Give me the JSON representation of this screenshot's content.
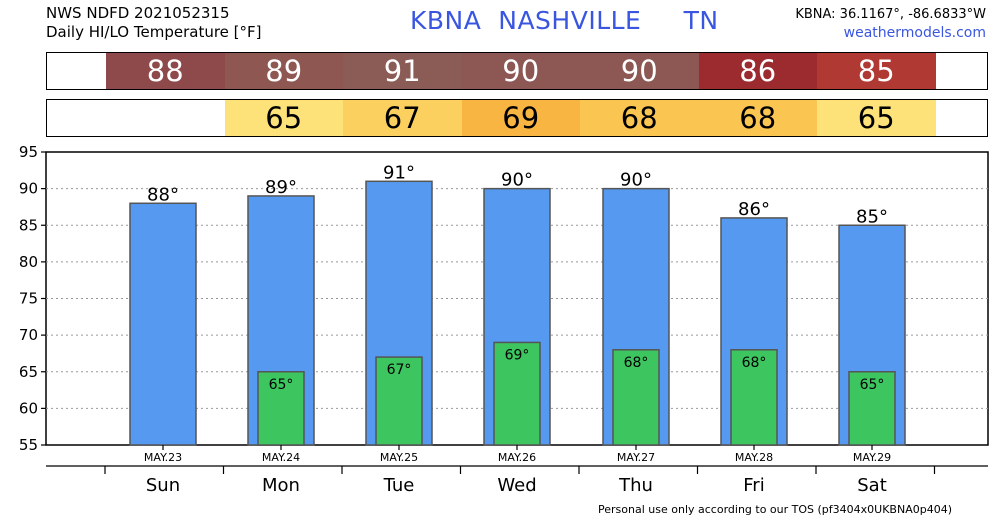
{
  "header": {
    "line1": "NWS NDFD 2021052315",
    "line2": "Daily HI/LO Temperature [°F]",
    "station": "KBNA  NASHVILLE     TN",
    "coords": "KBNA: 36.1167°, -86.6833°W",
    "site": "weathermodels.com"
  },
  "strips": {
    "hi": [
      {
        "text": "88",
        "color": "#8e4a4a"
      },
      {
        "text": "89",
        "color": "#8f5752"
      },
      {
        "text": "91",
        "color": "#8a5c55"
      },
      {
        "text": "90",
        "color": "#8d5854"
      },
      {
        "text": "90",
        "color": "#8d5854"
      },
      {
        "text": "86",
        "color": "#9c2b2f"
      },
      {
        "text": "85",
        "color": "#b03a33"
      }
    ],
    "lo": [
      {
        "text": "",
        "color": "#ffffff"
      },
      {
        "text": "65",
        "color": "#fde27a"
      },
      {
        "text": "67",
        "color": "#fbd05e"
      },
      {
        "text": "69",
        "color": "#f9b542"
      },
      {
        "text": "68",
        "color": "#fbc552"
      },
      {
        "text": "68",
        "color": "#fbc552"
      },
      {
        "text": "65",
        "color": "#fde27a"
      }
    ]
  },
  "chart_data": {
    "type": "bar",
    "categories": [
      "Sun",
      "Mon",
      "Tue",
      "Wed",
      "Thu",
      "Fri",
      "Sat"
    ],
    "dates": [
      "MAY.23",
      "MAY.24",
      "MAY.25",
      "MAY.26",
      "MAY.27",
      "MAY.28",
      "MAY.29"
    ],
    "series": [
      {
        "values": [
          88,
          89,
          91,
          90,
          90,
          86,
          85
        ],
        "labels": [
          "88°",
          "89°",
          "91°",
          "90°",
          "90°",
          "86°",
          "85°"
        ],
        "color": "#5599f0"
      },
      {
        "values": [
          null,
          65,
          67,
          69,
          68,
          68,
          65
        ],
        "labels": [
          "",
          "65°",
          "67°",
          "69°",
          "68°",
          "68°",
          "65°"
        ],
        "color": "#3dc560"
      }
    ],
    "ylim": [
      55,
      95
    ],
    "yticks": [
      55,
      60,
      65,
      70,
      75,
      80,
      85,
      90,
      95
    ],
    "grid": true,
    "title": "",
    "xlabel": "",
    "ylabel": ""
  },
  "footer": "Personal use only according to our TOS (pf3404x0UKBNA0p404)"
}
